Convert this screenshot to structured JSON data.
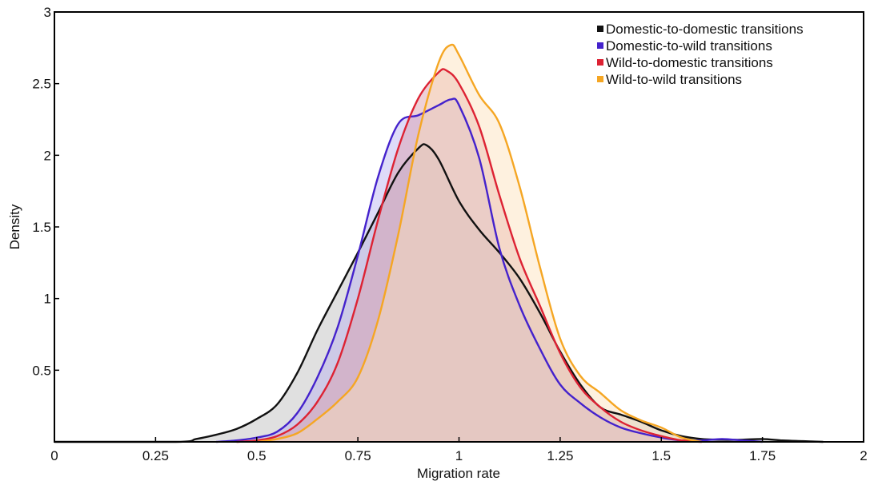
{
  "chart_data": {
    "type": "area",
    "title": "",
    "xlabel": "Migration rate",
    "ylabel": "Density",
    "xlim": [
      0,
      2
    ],
    "ylim": [
      0,
      3
    ],
    "x_ticks": [
      0,
      0.25,
      0.5,
      0.75,
      1,
      1.25,
      1.5,
      1.75,
      2
    ],
    "x_tick_labels": [
      "0",
      "0.25",
      "0.5",
      "0.75",
      "1",
      "1.25",
      "1.5",
      "1.75",
      "2"
    ],
    "y_ticks": [
      0.5,
      1,
      1.5,
      2,
      2.5,
      3
    ],
    "y_tick_labels": [
      "0.5",
      "1",
      "1.5",
      "2",
      "2.5",
      "3"
    ],
    "grid": false,
    "legend_position": "top-right",
    "series": [
      {
        "name": "Domestic-to-domestic transitions",
        "color": "#111111",
        "fill": "#bbbbbb",
        "x": [
          0,
          0.3,
          0.35,
          0.4,
          0.45,
          0.5,
          0.55,
          0.6,
          0.65,
          0.7,
          0.75,
          0.8,
          0.85,
          0.9,
          0.92,
          0.95,
          1.0,
          1.05,
          1.1,
          1.15,
          1.2,
          1.25,
          1.3,
          1.35,
          1.4,
          1.45,
          1.5,
          1.55,
          1.6,
          1.65,
          1.7,
          1.75,
          1.8,
          1.85,
          1.9
        ],
        "y": [
          0,
          0.0,
          0.02,
          0.05,
          0.09,
          0.16,
          0.26,
          0.48,
          0.78,
          1.05,
          1.32,
          1.6,
          1.88,
          2.05,
          2.07,
          1.97,
          1.68,
          1.48,
          1.32,
          1.14,
          0.9,
          0.63,
          0.4,
          0.24,
          0.19,
          0.14,
          0.08,
          0.04,
          0.02,
          0.015,
          0.015,
          0.02,
          0.01,
          0.005,
          0
        ]
      },
      {
        "name": "Domestic-to-wild transitions",
        "color": "#4422cc",
        "fill": "#b5b0f0",
        "x": [
          0.4,
          0.45,
          0.5,
          0.55,
          0.6,
          0.65,
          0.7,
          0.75,
          0.8,
          0.85,
          0.9,
          0.95,
          0.98,
          1.0,
          1.05,
          1.1,
          1.15,
          1.2,
          1.25,
          1.3,
          1.35,
          1.4,
          1.45,
          1.5,
          1.55,
          1.6,
          1.65,
          1.7,
          1.75
        ],
        "y": [
          0,
          0.01,
          0.03,
          0.07,
          0.2,
          0.45,
          0.8,
          1.3,
          1.85,
          2.22,
          2.28,
          2.35,
          2.39,
          2.35,
          1.98,
          1.35,
          0.95,
          0.65,
          0.4,
          0.27,
          0.17,
          0.1,
          0.06,
          0.03,
          0.01,
          0.01,
          0.02,
          0.01,
          0
        ]
      },
      {
        "name": "Wild-to-domestic transitions",
        "color": "#dd2233",
        "fill": "#d99aa8",
        "x": [
          0.45,
          0.5,
          0.55,
          0.6,
          0.65,
          0.7,
          0.75,
          0.8,
          0.85,
          0.9,
          0.95,
          0.97,
          1.0,
          1.05,
          1.1,
          1.15,
          1.2,
          1.25,
          1.3,
          1.35,
          1.4,
          1.45,
          1.5,
          1.55,
          1.6
        ],
        "y": [
          0,
          0.01,
          0.04,
          0.12,
          0.28,
          0.55,
          1.0,
          1.55,
          2.05,
          2.4,
          2.58,
          2.59,
          2.5,
          2.2,
          1.72,
          1.28,
          0.95,
          0.62,
          0.38,
          0.24,
          0.14,
          0.08,
          0.04,
          0.01,
          0
        ]
      },
      {
        "name": "Wild-to-wild transitions",
        "color": "#f5a623",
        "fill": "#fde0b8",
        "x": [
          0.5,
          0.55,
          0.6,
          0.65,
          0.7,
          0.75,
          0.8,
          0.85,
          0.9,
          0.95,
          0.98,
          1.0,
          1.05,
          1.1,
          1.15,
          1.2,
          1.25,
          1.3,
          1.35,
          1.4,
          1.45,
          1.5,
          1.55,
          1.6
        ],
        "y": [
          0,
          0.02,
          0.06,
          0.16,
          0.28,
          0.45,
          0.85,
          1.45,
          2.15,
          2.65,
          2.77,
          2.7,
          2.42,
          2.22,
          1.78,
          1.22,
          0.72,
          0.46,
          0.34,
          0.22,
          0.15,
          0.1,
          0.03,
          0
        ]
      }
    ]
  }
}
